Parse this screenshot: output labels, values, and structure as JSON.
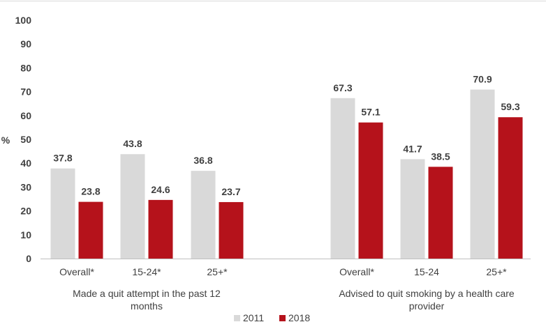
{
  "chart_data": {
    "type": "bar",
    "ylabel": "%",
    "ylim": [
      0,
      100
    ],
    "yticks": [
      0,
      10,
      20,
      30,
      40,
      50,
      60,
      70,
      80,
      90,
      100
    ],
    "grid": false,
    "legend_position": "bottom",
    "groups": [
      {
        "label": "Made a quit attempt in the past 12 months",
        "label_lines": [
          "Made a quit attempt in the past 12",
          "months"
        ],
        "categories": [
          "Overall*",
          "15-24*",
          "25+*"
        ]
      },
      {
        "label": "Advised to quit smoking by a health care provider",
        "label_lines": [
          "Advised to quit smoking by a health care",
          "provider"
        ],
        "categories": [
          "Overall*",
          "15-24",
          "25+*"
        ]
      }
    ],
    "categories": [
      "Overall*",
      "15-24*",
      "25+*",
      "Overall*",
      "15-24",
      "25+*"
    ],
    "series": [
      {
        "name": "2011",
        "color": "#d9d9d9",
        "values": [
          37.8,
          43.8,
          36.8,
          67.3,
          41.7,
          70.9
        ]
      },
      {
        "name": "2018",
        "color": "#b5121b",
        "values": [
          23.8,
          24.6,
          23.7,
          57.1,
          38.5,
          59.3
        ]
      }
    ]
  }
}
